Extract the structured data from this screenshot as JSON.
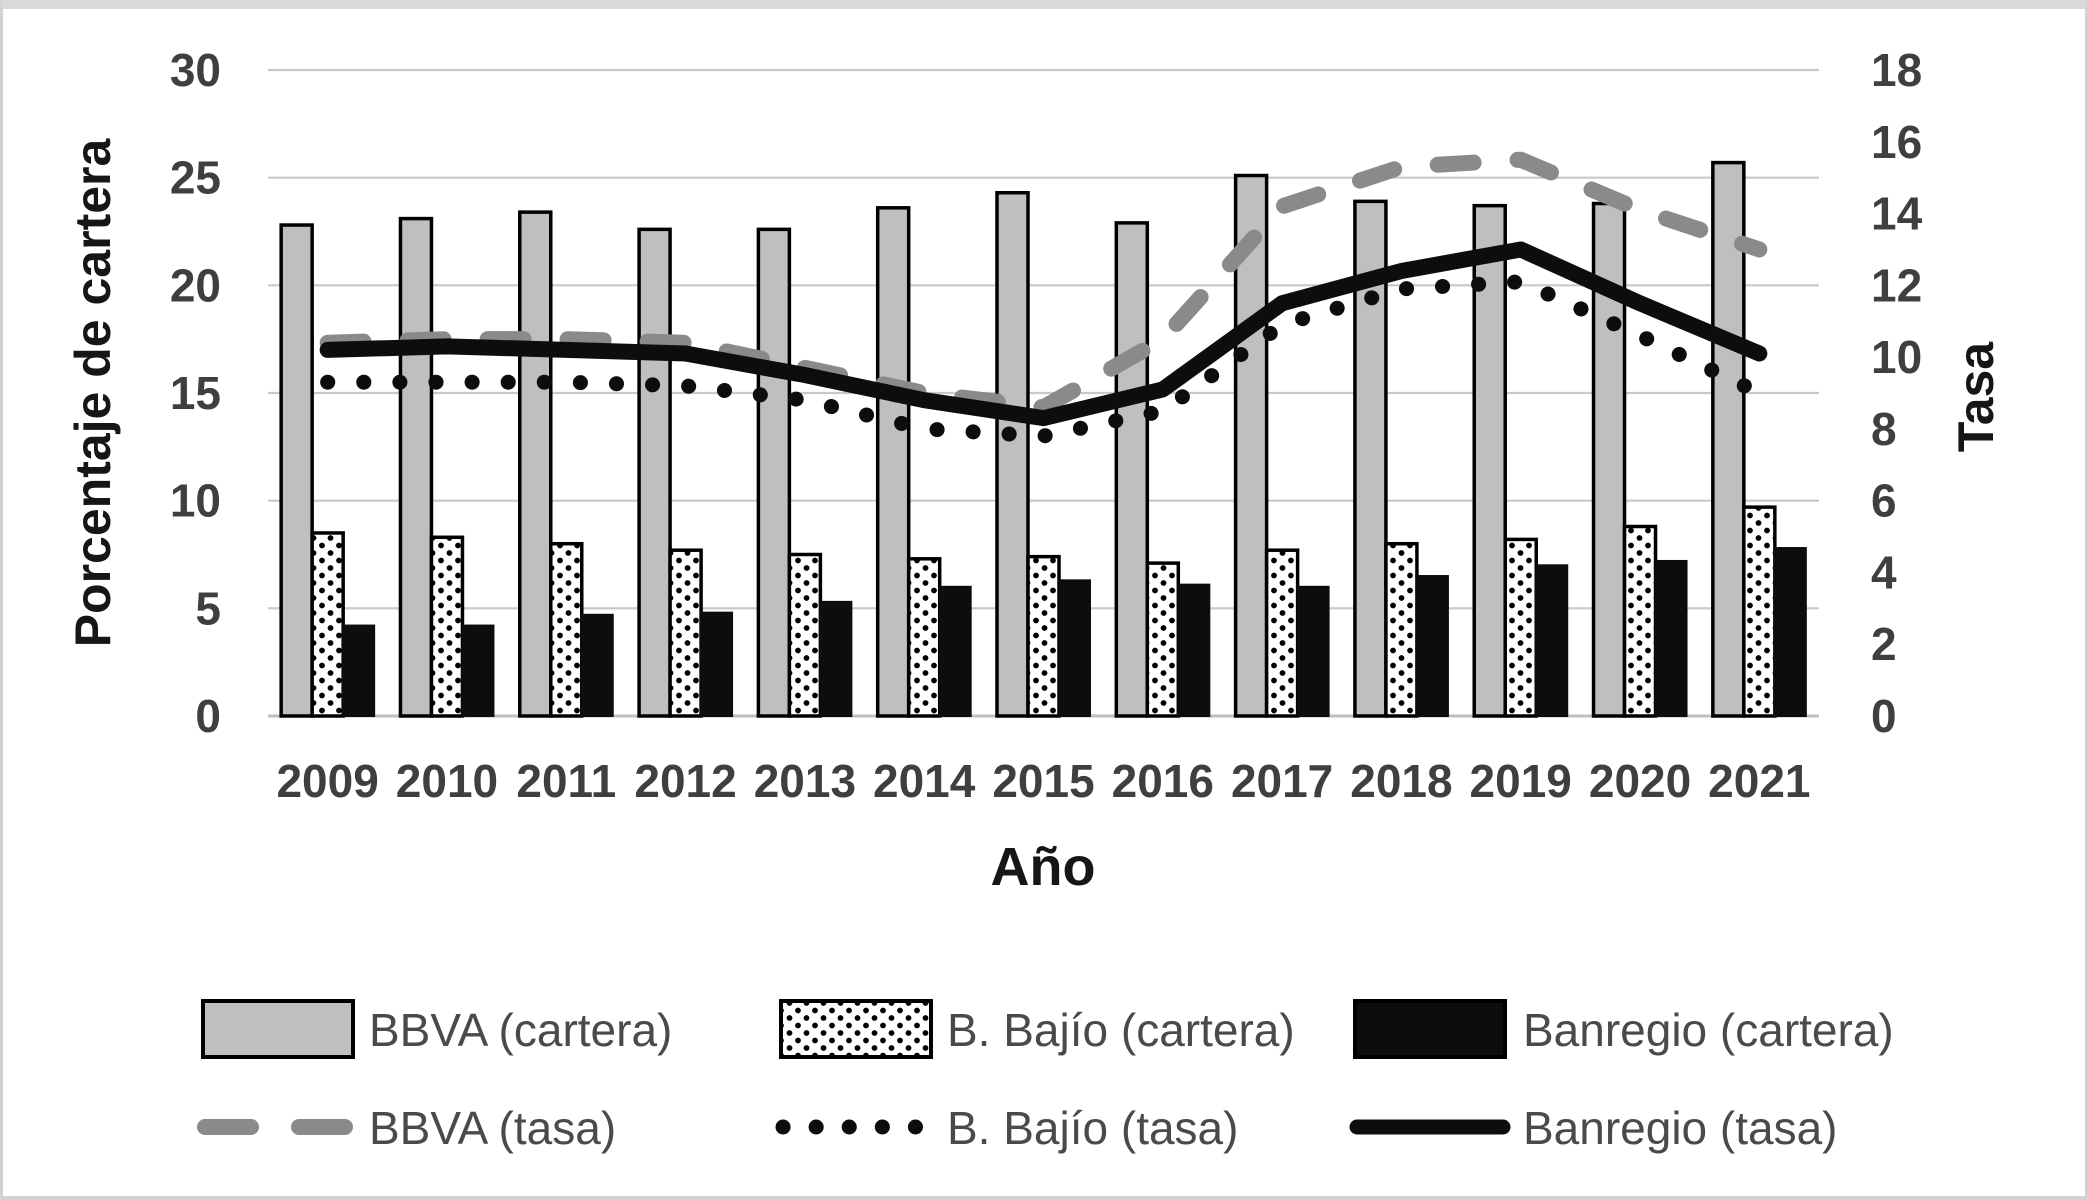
{
  "chart_data": {
    "type": "combo-bar-line",
    "title": "",
    "categories": [
      "2009",
      "2010",
      "2011",
      "2012",
      "2013",
      "2014",
      "2015",
      "2016",
      "2017",
      "2018",
      "2019",
      "2020",
      "2021"
    ],
    "x_axis": {
      "label": "Año"
    },
    "left_axis": {
      "label": "Porcentaje de cartera",
      "min": 0,
      "max": 30,
      "tick_step": 5,
      "ticks": [
        "0",
        "5",
        "10",
        "15",
        "20",
        "25",
        "30"
      ]
    },
    "right_axis": {
      "label": "Tasa",
      "min": 0,
      "max": 18,
      "tick_step": 2,
      "ticks": [
        "0",
        "2",
        "4",
        "6",
        "8",
        "10",
        "12",
        "14",
        "16",
        "18"
      ]
    },
    "grid": true,
    "legend_position": "bottom",
    "series": [
      {
        "name": "BBVA (cartera)",
        "type": "bar",
        "axis": "left",
        "style": "solid-gray",
        "color": "#bfbfbf",
        "border_color": "#000000",
        "values": [
          22.8,
          23.1,
          23.4,
          22.6,
          22.6,
          23.6,
          24.3,
          22.9,
          25.1,
          23.9,
          23.7,
          23.8,
          25.7
        ]
      },
      {
        "name": "B. Bajío (cartera)",
        "type": "bar",
        "axis": "left",
        "style": "dot-pattern",
        "color": "#ffffff",
        "border_color": "#000000",
        "values": [
          8.5,
          8.3,
          8.0,
          7.7,
          7.5,
          7.3,
          7.4,
          7.1,
          7.7,
          8.0,
          8.2,
          8.8,
          9.7
        ]
      },
      {
        "name": "Banregio (cartera)",
        "type": "bar",
        "axis": "left",
        "style": "solid-black",
        "color": "#0d0d0d",
        "border_color": "#0d0d0d",
        "values": [
          4.2,
          4.2,
          4.7,
          4.8,
          5.3,
          6.0,
          6.3,
          6.1,
          6.0,
          6.5,
          7.0,
          7.2,
          7.8
        ]
      },
      {
        "name": "BBVA (tasa)",
        "type": "line",
        "axis": "right",
        "style": "dashed",
        "color": "#8a8a8a",
        "values": [
          10.4,
          10.5,
          10.5,
          10.4,
          9.7,
          9.0,
          8.6,
          10.5,
          14.2,
          15.3,
          15.5,
          14.1,
          13.0
        ]
      },
      {
        "name": "B. Bajío (tasa)",
        "type": "line",
        "axis": "right",
        "style": "dotted",
        "color": "#0d0d0d",
        "values": [
          9.3,
          9.3,
          9.3,
          9.2,
          8.8,
          8.0,
          7.8,
          8.5,
          10.9,
          11.9,
          12.1,
          10.6,
          9.0
        ]
      },
      {
        "name": "Banregio (tasa)",
        "type": "line",
        "axis": "right",
        "style": "solid",
        "color": "#0d0d0d",
        "values": [
          10.2,
          10.3,
          10.2,
          10.1,
          9.5,
          8.8,
          8.3,
          9.1,
          11.5,
          12.4,
          13.0,
          11.5,
          10.1
        ]
      }
    ],
    "colors": {
      "gridline": "#c9c9c9",
      "axis_line": "#bfbfbf",
      "tick_text": "#3f3f3f",
      "title_text": "#161616",
      "legend_text": "#4a4a4a"
    }
  }
}
